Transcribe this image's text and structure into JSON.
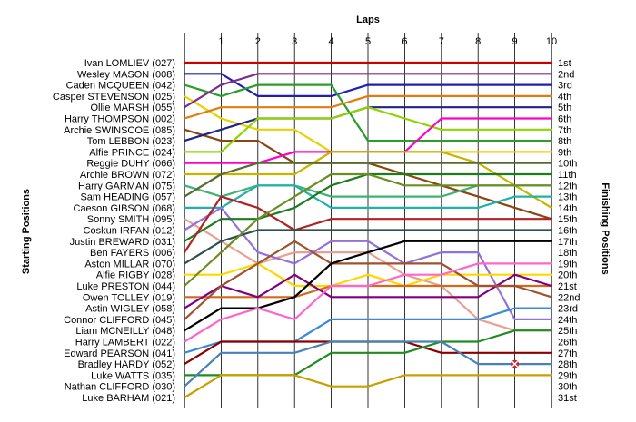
{
  "chart_data": {
    "type": "line",
    "xlabel": "Laps",
    "ylabel_left": "Starting Positions",
    "ylabel_right": "Finishing Positions",
    "x": [
      0,
      1,
      2,
      3,
      4,
      5,
      6,
      7,
      8,
      9,
      10
    ],
    "x_tick_labels": [
      "1",
      "2",
      "3",
      "4",
      "5",
      "6",
      "7",
      "8",
      "9",
      "10"
    ],
    "y_range": [
      1,
      31
    ],
    "grid": true,
    "finishing_labels": [
      "1st",
      "2nd",
      "3rd",
      "4th",
      "5th",
      "6th",
      "7th",
      "8th",
      "9th",
      "10th",
      "11th",
      "12th",
      "13th",
      "14th",
      "15th",
      "16th",
      "17th",
      "18th",
      "19th",
      "20th",
      "21st",
      "22nd",
      "23rd",
      "24th",
      "25th",
      "26th",
      "27th",
      "28th",
      "29th",
      "30th",
      "31st"
    ],
    "series": [
      {
        "name": "Ivan LOMLIEV (027)",
        "color": "#cc0000",
        "positions": [
          1,
          1,
          1,
          1,
          1,
          1,
          1,
          1,
          1,
          1,
          1
        ]
      },
      {
        "name": "Wesley MASON (008)",
        "color": "#1f1fb4",
        "positions": [
          2,
          2,
          4,
          4,
          4,
          3,
          3,
          3,
          3,
          3,
          3
        ]
      },
      {
        "name": "Caden MCQUEEN (042)",
        "color": "#2a9d2a",
        "positions": [
          3,
          4,
          3,
          3,
          3,
          8,
          8,
          8,
          8,
          8,
          8
        ]
      },
      {
        "name": "Casper STEVENSON (025)",
        "color": "#e8d300",
        "positions": [
          4,
          6,
          7,
          7,
          9,
          9,
          9,
          9,
          9,
          9,
          9
        ]
      },
      {
        "name": "Ollie MARSH (055)",
        "color": "#7b2d8e",
        "positions": [
          5,
          3,
          2,
          2,
          2,
          2,
          2,
          2,
          2,
          2,
          2
        ]
      },
      {
        "name": "Harry THOMPSON (002)",
        "color": "#e07c10",
        "positions": [
          6,
          5,
          5,
          5,
          5,
          4,
          4,
          4,
          4,
          4,
          4
        ]
      },
      {
        "name": "Archie SWINSCOE (085)",
        "color": "#8b4513",
        "positions": [
          7,
          8,
          8,
          10,
          10,
          10,
          11,
          12,
          13,
          14,
          15
        ]
      },
      {
        "name": "Tom LEBBON (023)",
        "color": "#222288",
        "positions": [
          8,
          7,
          6,
          6,
          6,
          5,
          5,
          5,
          5,
          5,
          5
        ]
      },
      {
        "name": "Alfie PRINCE (024)",
        "color": "#8fd400",
        "positions": [
          9,
          9,
          6,
          6,
          6,
          5,
          6,
          7,
          7,
          7,
          7
        ]
      },
      {
        "name": "Reggie DUHY (066)",
        "color": "#ff00cc",
        "positions": [
          10,
          10,
          10,
          9,
          9,
          9,
          9,
          6,
          6,
          6,
          6
        ]
      },
      {
        "name": "Archie BROWN (072)",
        "color": "#c8b400",
        "positions": [
          11,
          11,
          11,
          11,
          9,
          9,
          9,
          9,
          10,
          12,
          14
        ]
      },
      {
        "name": "Harry GARMAN (075)",
        "color": "#3cb371",
        "positions": [
          12,
          13,
          12,
          12,
          13,
          13,
          13,
          13,
          12,
          12,
          12
        ]
      },
      {
        "name": "Sam HEADING (057)",
        "color": "#556b2f",
        "positions": [
          13,
          11,
          10,
          10,
          10,
          10,
          10,
          10,
          10,
          10,
          10
        ]
      },
      {
        "name": "Caeson GIBSON (068)",
        "color": "#20b2aa",
        "positions": [
          14,
          14,
          12,
          12,
          14,
          14,
          14,
          14,
          14,
          13,
          13
        ]
      },
      {
        "name": "Sonny SMITH (095)",
        "color": "#e9a090",
        "positions": [
          15,
          17,
          19,
          18,
          18,
          18,
          20,
          21,
          24,
          25,
          25
        ]
      },
      {
        "name": "Coskun IRFAN (012)",
        "color": "#9370db",
        "positions": [
          16,
          14,
          18,
          19,
          17,
          17,
          19,
          18,
          18,
          24,
          24
        ]
      },
      {
        "name": "Justin BREWARD (031)",
        "color": "#1e7b1e",
        "positions": [
          17,
          15,
          15,
          14,
          12,
          11,
          11,
          11,
          11,
          11,
          11
        ]
      },
      {
        "name": "Ben FAYERS (006)",
        "color": "#b22222",
        "positions": [
          18,
          13,
          14,
          16,
          15,
          15,
          15,
          15,
          15,
          15,
          15
        ]
      },
      {
        "name": "Aston MILLAR (070)",
        "color": "#2f4f4f",
        "positions": [
          19,
          17,
          16,
          16,
          16,
          16,
          16,
          16,
          16,
          16,
          16
        ]
      },
      {
        "name": "Alfie RIGBY (028)",
        "color": "#ffd700",
        "positions": [
          20,
          20,
          19,
          21,
          21,
          20,
          21,
          20,
          20,
          20,
          20
        ]
      },
      {
        "name": "Luke PRESTON (044)",
        "color": "#6b8e23",
        "positions": [
          21,
          18,
          15,
          13,
          11,
          11,
          12,
          12,
          12,
          12,
          12
        ]
      },
      {
        "name": "Owen TOLLEY (019)",
        "color": "#d2691e",
        "positions": [
          22,
          22,
          22,
          22,
          21,
          21,
          21,
          21,
          21,
          21,
          21
        ]
      },
      {
        "name": "Astin WIGLEY (058)",
        "color": "#800080",
        "positions": [
          23,
          21,
          22,
          20,
          22,
          22,
          22,
          22,
          22,
          20,
          21
        ]
      },
      {
        "name": "Connor CLIFFORD (045)",
        "color": "#a0522d",
        "positions": [
          24,
          21,
          19,
          17,
          19,
          19,
          19,
          19,
          21,
          21,
          22
        ]
      },
      {
        "name": "Liam MCNEILLY (048)",
        "color": "#000000",
        "positions": [
          25,
          23,
          23,
          22,
          19,
          18,
          17,
          17,
          17,
          17,
          17
        ]
      },
      {
        "name": "Harry LAMBERT (022)",
        "color": "#ff66cc",
        "positions": [
          26,
          24,
          23,
          24,
          21,
          21,
          20,
          20,
          19,
          19,
          19
        ]
      },
      {
        "name": "Edward PEARSON (041)",
        "color": "#3a8ad9",
        "positions": [
          27,
          26,
          26,
          26,
          24,
          24,
          24,
          24,
          24,
          23,
          23
        ]
      },
      {
        "name": "Bradley HARDY (052)",
        "color": "#8b0000",
        "positions": [
          28,
          26,
          26,
          26,
          26,
          26,
          26,
          27,
          27,
          27,
          27
        ]
      },
      {
        "name": "Luke WATTS (035)",
        "color": "#228b22",
        "positions": [
          29,
          29,
          29,
          29,
          27,
          27,
          27,
          26,
          26,
          25,
          25
        ]
      },
      {
        "name": "Nathan CLIFFORD (030)",
        "color": "#4682b4",
        "positions": [
          30,
          27,
          27,
          27,
          26,
          26,
          26,
          26,
          28,
          28,
          28
        ],
        "dnf_at": 9
      },
      {
        "name": "Luke BARHAM (021)",
        "color": "#c8a000",
        "positions": [
          31,
          29,
          29,
          29,
          30,
          30,
          29,
          29,
          29,
          29,
          29
        ]
      }
    ]
  }
}
